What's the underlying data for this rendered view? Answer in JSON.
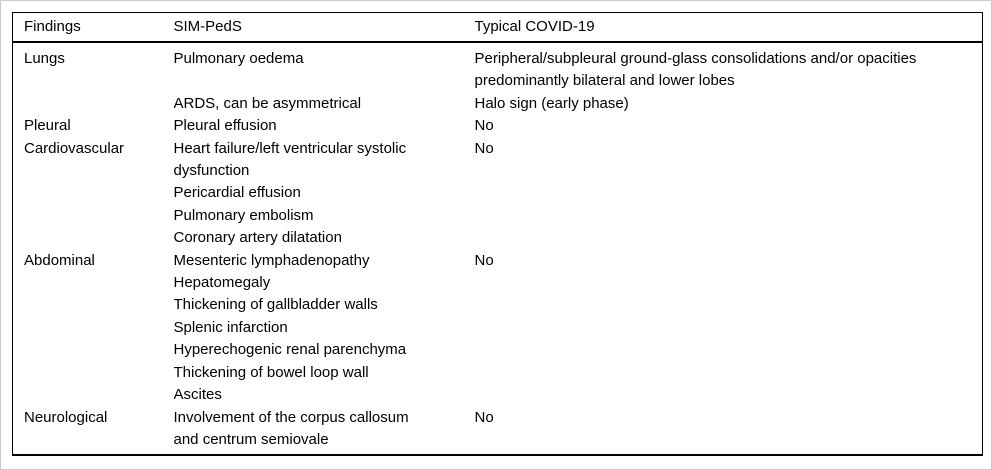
{
  "table": {
    "columns": [
      {
        "label": "Findings"
      },
      {
        "label": "SIM-PedS"
      },
      {
        "label": "Typical COVID-19"
      }
    ],
    "rows": [
      {
        "findings": "Lungs",
        "sim_peds": "Pulmonary oedema",
        "typical_covid": "Peripheral/subpleural ground-glass consolidations and/or opacities\npredominantly bilateral and lower lobes"
      },
      {
        "findings": "",
        "sim_peds": "ARDS, can be asymmetrical",
        "typical_covid": "Halo sign (early phase)"
      },
      {
        "findings": "Pleural",
        "sim_peds": "Pleural effusion",
        "typical_covid": "No"
      },
      {
        "findings": "Cardiovascular",
        "sim_peds": "Heart failure/left ventricular systolic\ndysfunction",
        "typical_covid": "No"
      },
      {
        "findings": "",
        "sim_peds": "Pericardial effusion",
        "typical_covid": ""
      },
      {
        "findings": "",
        "sim_peds": "Pulmonary embolism",
        "typical_covid": ""
      },
      {
        "findings": "",
        "sim_peds": "Coronary artery dilatation",
        "typical_covid": ""
      },
      {
        "findings": "Abdominal",
        "sim_peds": "Mesenteric lymphadenopathy",
        "typical_covid": "No"
      },
      {
        "findings": "",
        "sim_peds": "Hepatomegaly",
        "typical_covid": ""
      },
      {
        "findings": "",
        "sim_peds": "Thickening of gallbladder walls",
        "typical_covid": ""
      },
      {
        "findings": "",
        "sim_peds": "Splenic infarction",
        "typical_covid": ""
      },
      {
        "findings": "",
        "sim_peds": "Hyperechogenic renal parenchyma",
        "typical_covid": ""
      },
      {
        "findings": "",
        "sim_peds": "Thickening of bowel loop wall",
        "typical_covid": ""
      },
      {
        "findings": "",
        "sim_peds": "Ascites",
        "typical_covid": ""
      },
      {
        "findings": "Neurological",
        "sim_peds": "Involvement of the corpus callosum\nand centrum semiovale",
        "typical_covid": "No"
      }
    ],
    "colors": {
      "text": "#000000",
      "rule": "#000000",
      "background": "#ffffff"
    }
  }
}
